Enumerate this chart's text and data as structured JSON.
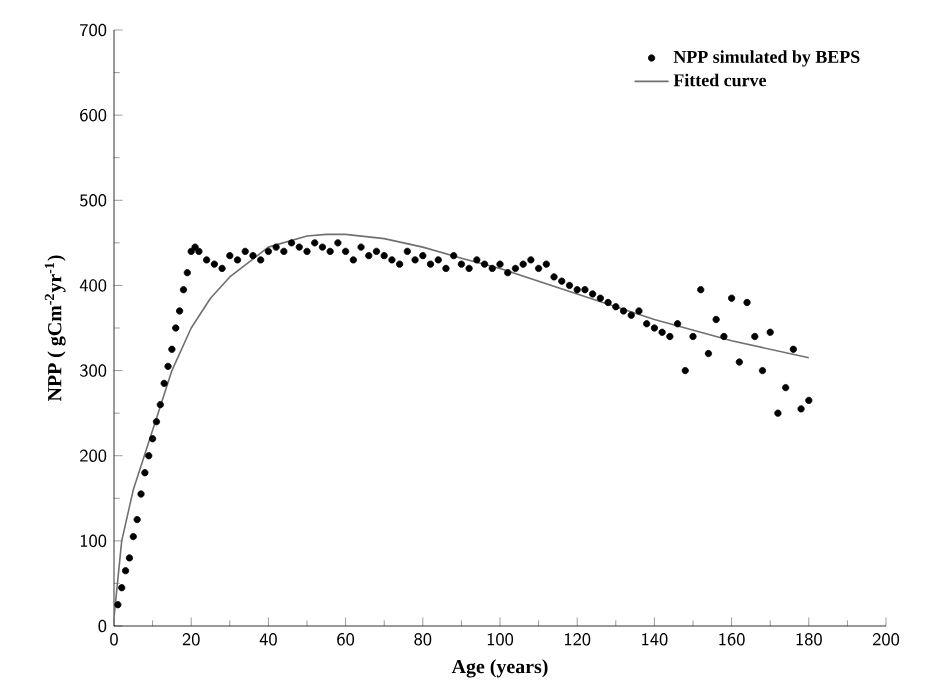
{
  "chart_data": {
    "type": "scatter",
    "xlabel": "Age (years)",
    "ylabel": "NPP ( gCm$^{-2}$yr$^{-1}$)",
    "xlim": [
      0,
      200
    ],
    "ylim": [
      0,
      700
    ],
    "xticks": [
      0,
      20,
      40,
      60,
      80,
      100,
      120,
      140,
      160,
      180,
      200
    ],
    "yticks": [
      0,
      100,
      200,
      300,
      400,
      500,
      600,
      700
    ],
    "legend": "top right",
    "marker": "circle",
    "grid": false,
    "series": [
      {
        "name": "NPP simulated by BEPS",
        "color": "#000000",
        "x": [
          1,
          2,
          3,
          4,
          5,
          6,
          7,
          8,
          9,
          10,
          11,
          12,
          13,
          14,
          15,
          16,
          17,
          18,
          19,
          20,
          21,
          22,
          24,
          26,
          28,
          30,
          32,
          34,
          36,
          38,
          40,
          42,
          44,
          46,
          48,
          50,
          52,
          54,
          56,
          58,
          60,
          62,
          64,
          66,
          68,
          70,
          72,
          74,
          76,
          78,
          80,
          82,
          84,
          86,
          88,
          90,
          92,
          94,
          96,
          98,
          100,
          102,
          104,
          106,
          108,
          110,
          112,
          114,
          116,
          118,
          120,
          122,
          124,
          126,
          128,
          130,
          132,
          134,
          136,
          138,
          140,
          142,
          144,
          146,
          148,
          150,
          152,
          154,
          156,
          158,
          160,
          162,
          164,
          166,
          168,
          170,
          172,
          174,
          176,
          178,
          180
        ],
        "values": [
          25,
          45,
          65,
          80,
          105,
          125,
          155,
          180,
          200,
          220,
          240,
          260,
          285,
          305,
          325,
          350,
          370,
          395,
          415,
          440,
          445,
          440,
          430,
          425,
          420,
          435,
          430,
          440,
          435,
          430,
          440,
          445,
          440,
          450,
          445,
          440,
          450,
          445,
          440,
          450,
          440,
          430,
          445,
          435,
          440,
          435,
          430,
          425,
          440,
          430,
          435,
          425,
          430,
          420,
          435,
          425,
          420,
          430,
          425,
          420,
          425,
          415,
          420,
          425,
          430,
          420,
          425,
          410,
          405,
          400,
          395,
          395,
          390,
          385,
          380,
          375,
          370,
          365,
          370,
          355,
          350,
          345,
          340,
          355,
          300,
          340,
          395,
          320,
          360,
          340,
          385,
          310,
          380,
          340,
          300,
          345,
          250,
          280,
          325,
          255,
          265
        ]
      },
      {
        "name": "Fitted curve",
        "type": "line",
        "color": "#707070",
        "line_style": "solid",
        "marker": "none",
        "x": [
          0,
          2,
          5,
          10,
          15,
          20,
          25,
          30,
          40,
          50,
          55,
          60,
          70,
          80,
          90,
          100,
          120,
          140,
          160,
          180
        ],
        "values": [
          10,
          100,
          160,
          230,
          300,
          350,
          385,
          410,
          445,
          458,
          460,
          460,
          455,
          445,
          432,
          420,
          390,
          360,
          335,
          315
        ]
      }
    ]
  }
}
